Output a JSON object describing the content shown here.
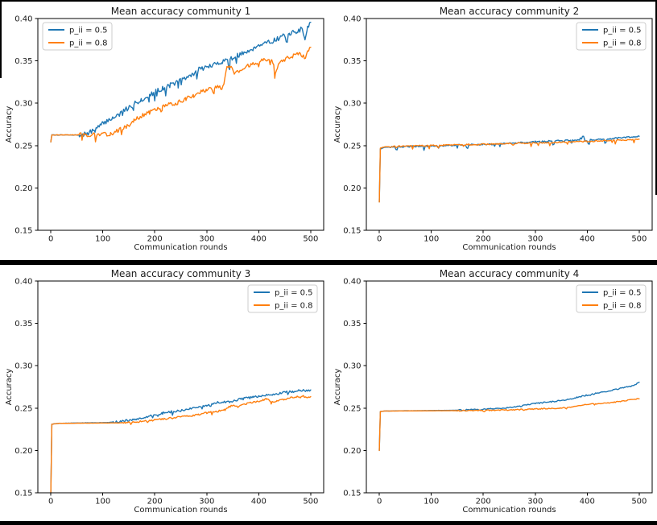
{
  "figure": {
    "background": "#ffffff",
    "frame_color": "#000000",
    "text_color": "#1a1a1a",
    "spine_color": "#000000",
    "legend_border_color": "#cccccc",
    "legend_background": "rgba(255,255,255,0.8)"
  },
  "chart_data": [
    {
      "type": "line",
      "title": "Mean accuracy community 1",
      "xlabel": "Communication rounds",
      "ylabel": "Accuracy",
      "xlim": [
        -25,
        525
      ],
      "ylim": [
        0.15,
        0.4
      ],
      "xticks": [
        0,
        100,
        200,
        300,
        400,
        500
      ],
      "xtick_labels": [
        "0",
        "100",
        "200",
        "300",
        "400",
        "500"
      ],
      "yticks": [
        0.15,
        0.2,
        0.25,
        0.3,
        0.35,
        0.4
      ],
      "ytick_labels": [
        "0.15",
        "0.20",
        "0.25",
        "0.30",
        "0.35",
        "0.40"
      ],
      "grid": false,
      "legend_position": "upper-left",
      "series": [
        {
          "name": "p_ii = 0.5",
          "color": "#1f77b4",
          "noise": 0.0028,
          "noise_from": 55,
          "spike": 0.011,
          "spike_p": 0.07,
          "seed": 7,
          "points": [
            [
              0,
              0.2545
            ],
            [
              2,
              0.2625
            ],
            [
              55,
              0.2625
            ],
            [
              70,
              0.264
            ],
            [
              85,
              0.2685
            ],
            [
              100,
              0.276
            ],
            [
              115,
              0.2815
            ],
            [
              130,
              0.286
            ],
            [
              145,
              0.293
            ],
            [
              160,
              0.299
            ],
            [
              175,
              0.3045
            ],
            [
              190,
              0.309
            ],
            [
              200,
              0.3135
            ],
            [
              215,
              0.3175
            ],
            [
              230,
              0.3215
            ],
            [
              245,
              0.3255
            ],
            [
              260,
              0.3295
            ],
            [
              275,
              0.335
            ],
            [
              285,
              0.3405
            ],
            [
              300,
              0.3425
            ],
            [
              315,
              0.3455
            ],
            [
              330,
              0.3495
            ],
            [
              345,
              0.3525
            ],
            [
              360,
              0.3565
            ],
            [
              375,
              0.36
            ],
            [
              390,
              0.365
            ],
            [
              400,
              0.369
            ],
            [
              415,
              0.372
            ],
            [
              430,
              0.3745
            ],
            [
              445,
              0.3785
            ],
            [
              460,
              0.3825
            ],
            [
              475,
              0.385
            ],
            [
              484,
              0.388
            ],
            [
              489,
              0.3765
            ],
            [
              494,
              0.39
            ],
            [
              500,
              0.3955
            ]
          ]
        },
        {
          "name": "p_ii = 0.8",
          "color": "#ff7f0e",
          "noise": 0.0024,
          "noise_from": 55,
          "spike": 0.009,
          "spike_p": 0.06,
          "seed": 13,
          "points": [
            [
              0,
              0.2545
            ],
            [
              2,
              0.2625
            ],
            [
              100,
              0.2628
            ],
            [
              115,
              0.264
            ],
            [
              130,
              0.268
            ],
            [
              145,
              0.272
            ],
            [
              160,
              0.2795
            ],
            [
              175,
              0.2855
            ],
            [
              190,
              0.289
            ],
            [
              200,
              0.292
            ],
            [
              215,
              0.2965
            ],
            [
              230,
              0.2985
            ],
            [
              245,
              0.301
            ],
            [
              260,
              0.3055
            ],
            [
              275,
              0.309
            ],
            [
              285,
              0.3135
            ],
            [
              300,
              0.316
            ],
            [
              315,
              0.3185
            ],
            [
              325,
              0.321
            ],
            [
              333,
              0.3225
            ],
            [
              339,
              0.343
            ],
            [
              347,
              0.3435
            ],
            [
              353,
              0.335
            ],
            [
              362,
              0.338
            ],
            [
              375,
              0.343
            ],
            [
              390,
              0.347
            ],
            [
              400,
              0.3495
            ],
            [
              412,
              0.351
            ],
            [
              425,
              0.352
            ],
            [
              432,
              0.337
            ],
            [
              440,
              0.349
            ],
            [
              455,
              0.353
            ],
            [
              470,
              0.3575
            ],
            [
              480,
              0.3595
            ],
            [
              488,
              0.353
            ],
            [
              494,
              0.36
            ],
            [
              500,
              0.366
            ]
          ]
        }
      ]
    },
    {
      "type": "line",
      "title": "Mean accuracy community 2",
      "xlabel": "Communication rounds",
      "ylabel": "Accuracy",
      "xlim": [
        -25,
        525
      ],
      "ylim": [
        0.15,
        0.4
      ],
      "xticks": [
        0,
        100,
        200,
        300,
        400,
        500
      ],
      "xtick_labels": [
        "0",
        "100",
        "200",
        "300",
        "400",
        "500"
      ],
      "yticks": [
        0.15,
        0.2,
        0.25,
        0.3,
        0.35,
        0.4
      ],
      "ytick_labels": [
        "0.15",
        "0.20",
        "0.25",
        "0.30",
        "0.35",
        "0.40"
      ],
      "grid": false,
      "legend_position": "upper-right",
      "series": [
        {
          "name": "p_ii = 0.5",
          "color": "#1f77b4",
          "noise": 0.0009,
          "noise_from": 20,
          "spike": 0.0055,
          "spike_p": 0.05,
          "seed": 21,
          "points": [
            [
              0,
              0.1835
            ],
            [
              2,
              0.246
            ],
            [
              10,
              0.248
            ],
            [
              50,
              0.249
            ],
            [
              100,
              0.2495
            ],
            [
              150,
              0.2505
            ],
            [
              200,
              0.2515
            ],
            [
              250,
              0.2525
            ],
            [
              300,
              0.2545
            ],
            [
              340,
              0.2555
            ],
            [
              370,
              0.256
            ],
            [
              385,
              0.2565
            ],
            [
              391,
              0.2655
            ],
            [
              396,
              0.255
            ],
            [
              410,
              0.257
            ],
            [
              440,
              0.258
            ],
            [
              470,
              0.2595
            ],
            [
              500,
              0.261
            ]
          ]
        },
        {
          "name": "p_ii = 0.8",
          "color": "#ff7f0e",
          "noise": 0.0008,
          "noise_from": 20,
          "spike": 0.0045,
          "spike_p": 0.05,
          "seed": 34,
          "points": [
            [
              0,
              0.1835
            ],
            [
              2,
              0.247
            ],
            [
              10,
              0.2485
            ],
            [
              50,
              0.2495
            ],
            [
              100,
              0.25
            ],
            [
              150,
              0.251
            ],
            [
              200,
              0.2515
            ],
            [
              250,
              0.2525
            ],
            [
              300,
              0.253
            ],
            [
              350,
              0.254
            ],
            [
              400,
              0.255
            ],
            [
              450,
              0.256
            ],
            [
              480,
              0.257
            ],
            [
              500,
              0.2575
            ]
          ]
        }
      ]
    },
    {
      "type": "line",
      "title": "Mean accuracy community 3",
      "xlabel": "Communication rounds",
      "ylabel": "Accuracy",
      "xlim": [
        -25,
        525
      ],
      "ylim": [
        0.15,
        0.4
      ],
      "xticks": [
        0,
        100,
        200,
        300,
        400,
        500
      ],
      "xtick_labels": [
        "0",
        "100",
        "200",
        "300",
        "400",
        "500"
      ],
      "yticks": [
        0.15,
        0.2,
        0.25,
        0.3,
        0.35,
        0.4
      ],
      "ytick_labels": [
        "0.15",
        "0.20",
        "0.25",
        "0.30",
        "0.35",
        "0.40"
      ],
      "grid": false,
      "legend_position": "upper-right",
      "series": [
        {
          "name": "p_ii = 0.5",
          "color": "#1f77b4",
          "noise": 0.0013,
          "noise_from": 120,
          "spike": 0.0035,
          "spike_p": 0.04,
          "seed": 5,
          "points": [
            [
              0,
              0.148
            ],
            [
              2,
              0.231
            ],
            [
              15,
              0.232
            ],
            [
              110,
              0.233
            ],
            [
              140,
              0.2345
            ],
            [
              160,
              0.2365
            ],
            [
              180,
              0.239
            ],
            [
              200,
              0.2425
            ],
            [
              215,
              0.244
            ],
            [
              230,
              0.2455
            ],
            [
              250,
              0.247
            ],
            [
              270,
              0.2495
            ],
            [
              285,
              0.251
            ],
            [
              300,
              0.2535
            ],
            [
              315,
              0.256
            ],
            [
              330,
              0.257
            ],
            [
              345,
              0.2575
            ],
            [
              360,
              0.26
            ],
            [
              375,
              0.2615
            ],
            [
              390,
              0.263
            ],
            [
              405,
              0.2645
            ],
            [
              420,
              0.2655
            ],
            [
              435,
              0.267
            ],
            [
              450,
              0.2685
            ],
            [
              465,
              0.2695
            ],
            [
              480,
              0.2715
            ],
            [
              490,
              0.27
            ],
            [
              500,
              0.2715
            ]
          ]
        },
        {
          "name": "p_ii = 0.8",
          "color": "#ff7f0e",
          "noise": 0.001,
          "noise_from": 140,
          "spike": 0.003,
          "spike_p": 0.03,
          "seed": 55,
          "points": [
            [
              0,
              0.148
            ],
            [
              2,
              0.231
            ],
            [
              15,
              0.232
            ],
            [
              130,
              0.2325
            ],
            [
              170,
              0.234
            ],
            [
              200,
              0.236
            ],
            [
              230,
              0.238
            ],
            [
              250,
              0.2395
            ],
            [
              270,
              0.241
            ],
            [
              285,
              0.2425
            ],
            [
              300,
              0.2445
            ],
            [
              320,
              0.246
            ],
            [
              335,
              0.248
            ],
            [
              345,
              0.2525
            ],
            [
              352,
              0.254
            ],
            [
              360,
              0.251
            ],
            [
              370,
              0.254
            ],
            [
              380,
              0.256
            ],
            [
              395,
              0.2575
            ],
            [
              408,
              0.2595
            ],
            [
              415,
              0.261
            ],
            [
              424,
              0.2575
            ],
            [
              435,
              0.2585
            ],
            [
              448,
              0.26
            ],
            [
              460,
              0.262
            ],
            [
              472,
              0.2635
            ],
            [
              482,
              0.2645
            ],
            [
              492,
              0.263
            ],
            [
              500,
              0.2635
            ]
          ]
        }
      ]
    },
    {
      "type": "line",
      "title": "Mean accuracy community 4",
      "xlabel": "Communication rounds",
      "ylabel": "Accuracy",
      "xlim": [
        -25,
        525
      ],
      "ylim": [
        0.15,
        0.4
      ],
      "xticks": [
        0,
        100,
        200,
        300,
        400,
        500
      ],
      "xtick_labels": [
        "0",
        "100",
        "200",
        "300",
        "400",
        "500"
      ],
      "yticks": [
        0.15,
        0.2,
        0.25,
        0.3,
        0.35,
        0.4
      ],
      "ytick_labels": [
        "0.15",
        "0.20",
        "0.25",
        "0.30",
        "0.35",
        "0.40"
      ],
      "grid": false,
      "legend_position": "upper-right",
      "series": [
        {
          "name": "p_ii = 0.5",
          "color": "#1f77b4",
          "noise": 0.0007,
          "noise_from": 150,
          "spike": 0.0015,
          "spike_p": 0.02,
          "seed": 8,
          "points": [
            [
              0,
              0.2
            ],
            [
              2,
              0.246
            ],
            [
              10,
              0.2465
            ],
            [
              150,
              0.2475
            ],
            [
              180,
              0.248
            ],
            [
              210,
              0.249
            ],
            [
              240,
              0.25
            ],
            [
              270,
              0.252
            ],
            [
              300,
              0.2555
            ],
            [
              325,
              0.257
            ],
            [
              350,
              0.259
            ],
            [
              370,
              0.261
            ],
            [
              390,
              0.264
            ],
            [
              410,
              0.2665
            ],
            [
              430,
              0.269
            ],
            [
              450,
              0.2715
            ],
            [
              470,
              0.274
            ],
            [
              490,
              0.2765
            ],
            [
              500,
              0.2805
            ]
          ]
        },
        {
          "name": "p_ii = 0.8",
          "color": "#ff7f0e",
          "noise": 0.0006,
          "noise_from": 150,
          "spike": 0.0015,
          "spike_p": 0.02,
          "seed": 71,
          "points": [
            [
              0,
              0.2
            ],
            [
              2,
              0.246
            ],
            [
              10,
              0.2465
            ],
            [
              150,
              0.247
            ],
            [
              200,
              0.2472
            ],
            [
              250,
              0.2478
            ],
            [
              300,
              0.249
            ],
            [
              330,
              0.2495
            ],
            [
              360,
              0.2505
            ],
            [
              380,
              0.252
            ],
            [
              400,
              0.2545
            ],
            [
              420,
              0.255
            ],
            [
              440,
              0.256
            ],
            [
              460,
              0.2575
            ],
            [
              480,
              0.2595
            ],
            [
              490,
              0.2605
            ],
            [
              500,
              0.261
            ]
          ]
        }
      ]
    }
  ]
}
